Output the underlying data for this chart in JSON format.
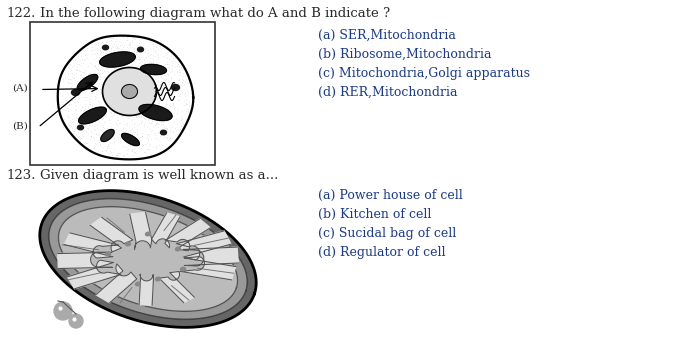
{
  "bg_color": "#ffffff",
  "text_color_black": "#2a2a2a",
  "text_color_blue": "#1a3a8f",
  "q122_number": "122.",
  "q122_text": "In the following diagram what do A and B indicate ?",
  "q122_options": [
    "(a) SER,Mitochondria",
    "(b) Ribosome,Mitochondria",
    "(c) Mitochondria,Golgi apparatus",
    "(d) RER,Mitochondria"
  ],
  "q123_number": "123.",
  "q123_text": "Given diagram is well known as a...",
  "q123_options": [
    "(a) Power house of cell",
    "(b) Kitchen of cell",
    "(c) Sucidal bag of cell",
    "(d) Regulator of cell"
  ],
  "figsize": [
    6.98,
    3.37
  ],
  "dpi": 100
}
